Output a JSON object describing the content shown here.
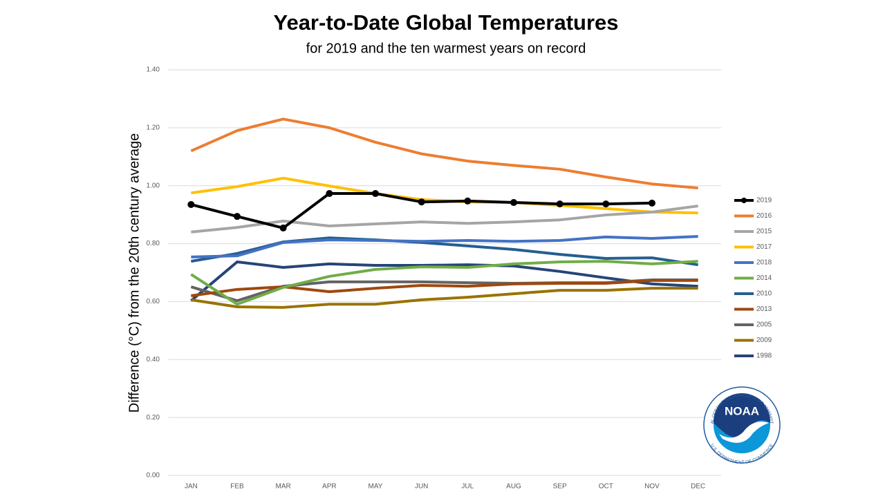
{
  "chart_data": {
    "type": "line",
    "title": "Year-to-Date Global Temperatures",
    "subtitle": "for 2019 and the ten warmest years on record",
    "y_label": "Difference (°C) from the 20th century average",
    "categories": [
      "JAN",
      "FEB",
      "MAR",
      "APR",
      "MAY",
      "JUN",
      "JUL",
      "AUG",
      "SEP",
      "OCT",
      "NOV",
      "DEC"
    ],
    "ylim": [
      0,
      1.4
    ],
    "yticks": [
      {
        "value": 0,
        "label": "0.00"
      },
      {
        "value": 0.2,
        "label": "0.20"
      },
      {
        "value": 0.4,
        "label": "0.40"
      },
      {
        "value": 0.6,
        "label": "0.60"
      },
      {
        "value": 0.8,
        "label": "0.80"
      },
      {
        "value": 1.0,
        "label": "1.00"
      },
      {
        "value": 1.2,
        "label": "1.20"
      },
      {
        "value": 1.4,
        "label": "1.40"
      }
    ],
    "grid": true,
    "legend": "right",
    "series": [
      {
        "name": "2019",
        "color": "#000000",
        "markers": true,
        "values": [
          0.935,
          0.894,
          0.854,
          0.973,
          0.973,
          0.944,
          0.947,
          0.942,
          0.937,
          0.937,
          0.94,
          null
        ]
      },
      {
        "name": "2016",
        "color": "#ed7d31",
        "values": [
          1.12,
          1.19,
          1.23,
          1.2,
          1.15,
          1.11,
          1.085,
          1.07,
          1.057,
          1.03,
          1.006,
          0.992
        ]
      },
      {
        "name": "2015",
        "color": "#a5a5a5",
        "values": [
          0.84,
          0.856,
          0.878,
          0.861,
          0.868,
          0.875,
          0.87,
          0.875,
          0.882,
          0.899,
          0.909,
          0.93
        ]
      },
      {
        "name": "2017",
        "color": "#ffc000",
        "values": [
          0.975,
          0.997,
          1.026,
          0.999,
          0.973,
          0.952,
          0.944,
          0.942,
          0.932,
          0.921,
          0.909,
          0.906
        ]
      },
      {
        "name": "2018",
        "color": "#4472c4",
        "values": [
          0.754,
          0.758,
          0.804,
          0.813,
          0.811,
          0.808,
          0.811,
          0.808,
          0.811,
          0.823,
          0.818,
          0.825
        ]
      },
      {
        "name": "2014",
        "color": "#70ad47",
        "values": [
          0.694,
          0.591,
          0.649,
          0.687,
          0.711,
          0.72,
          0.718,
          0.73,
          0.737,
          0.739,
          0.73,
          0.739
        ]
      },
      {
        "name": "2010",
        "color": "#255e91",
        "values": [
          0.739,
          0.766,
          0.806,
          0.82,
          0.813,
          0.804,
          0.792,
          0.78,
          0.763,
          0.749,
          0.751,
          0.727
        ]
      },
      {
        "name": "2013",
        "color": "#9e480e",
        "values": [
          0.62,
          0.642,
          0.651,
          0.634,
          0.646,
          0.656,
          0.653,
          0.661,
          0.663,
          0.663,
          0.673,
          0.673
        ]
      },
      {
        "name": "2005",
        "color": "#636363",
        "values": [
          0.651,
          0.603,
          0.653,
          0.668,
          0.668,
          0.668,
          0.665,
          0.663,
          0.665,
          0.665,
          0.675,
          0.675
        ]
      },
      {
        "name": "2009",
        "color": "#997300",
        "values": [
          0.606,
          0.582,
          0.58,
          0.591,
          0.591,
          0.606,
          0.615,
          0.627,
          0.639,
          0.639,
          0.646,
          0.646
        ]
      },
      {
        "name": "1998",
        "color": "#264478",
        "values": [
          0.603,
          0.737,
          0.718,
          0.73,
          0.725,
          0.725,
          0.727,
          0.723,
          0.704,
          0.682,
          0.661,
          0.653
        ]
      }
    ]
  },
  "logo": {
    "name": "NOAA",
    "ring_top": "NATIONAL OCEANIC AND ATMOSPHERIC ADMINISTRATION",
    "ring_bottom": "U.S. DEPARTMENT OF COMMERCE"
  }
}
